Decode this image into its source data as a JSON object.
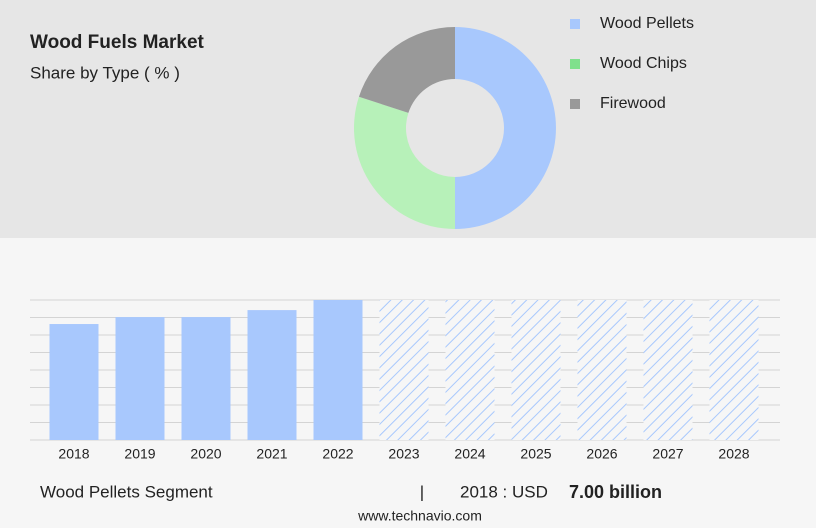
{
  "title": "Wood Fuels Market",
  "subtitle": "Share by Type ( % )",
  "chart_data": [
    {
      "type": "pie",
      "categories": [
        "Wood Pellets",
        "Wood Chips",
        "Firewood"
      ],
      "values": [
        50,
        30,
        20
      ],
      "colors": [
        "#a8c8fd",
        "#b7f1b9",
        "#999999"
      ],
      "legend_colors": [
        "#a8c8fd",
        "#7fe08c",
        "#999999"
      ]
    },
    {
      "type": "bar",
      "categories": [
        "2018",
        "2019",
        "2020",
        "2021",
        "2022",
        "2023",
        "2024",
        "2025",
        "2026",
        "2027",
        "2028"
      ],
      "values": [
        7.0,
        7.42,
        7.42,
        7.84,
        8.45,
        null,
        null,
        null,
        null,
        null,
        null
      ],
      "value_labels": [
        "7.00 billion",
        null,
        null,
        null,
        null,
        null,
        null,
        null,
        null,
        null,
        null
      ],
      "color": "#a8c8fd",
      "ylim": [
        0,
        8.45
      ]
    }
  ],
  "footer": {
    "segment": "Wood Pellets Segment",
    "separator": "|",
    "year_text": "2018 : USD",
    "source": "www.technavio.com"
  }
}
